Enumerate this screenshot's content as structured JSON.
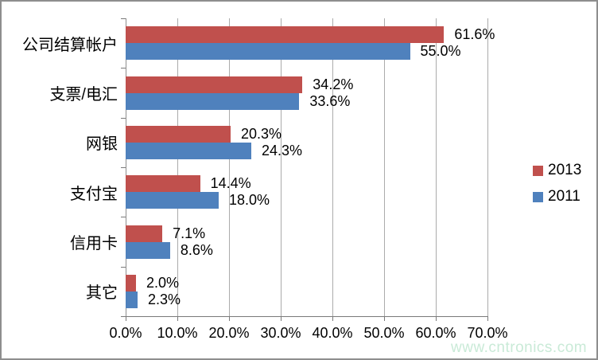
{
  "chart_data": {
    "type": "bar",
    "orientation": "horizontal",
    "categories": [
      "公司结算帐户",
      "支票/电汇",
      "网银",
      "支付宝",
      "信用卡",
      "其它"
    ],
    "series": [
      {
        "name": "2013",
        "color": "#C0504D",
        "values": [
          61.6,
          34.2,
          20.3,
          14.4,
          7.1,
          2.0
        ],
        "labels": [
          "61.6%",
          "34.2%",
          "20.3%",
          "14.4%",
          "7.1%",
          "2.0%"
        ]
      },
      {
        "name": "2011",
        "color": "#4F81BD",
        "values": [
          55.0,
          33.6,
          24.3,
          18.0,
          8.6,
          2.3
        ],
        "labels": [
          "55.0%",
          "33.6%",
          "24.3%",
          "18.0%",
          "8.6%",
          "2.3%"
        ]
      }
    ],
    "x_axis": {
      "min": 0,
      "max": 70,
      "step": 10,
      "tick_labels": [
        "0.0%",
        "10.0%",
        "20.0%",
        "30.0%",
        "40.0%",
        "50.0%",
        "60.0%",
        "70.0%"
      ]
    },
    "grid": true,
    "legend_position": "right"
  },
  "watermark": {
    "text": "www.cntronics.com",
    "color": "#c9ead7"
  }
}
